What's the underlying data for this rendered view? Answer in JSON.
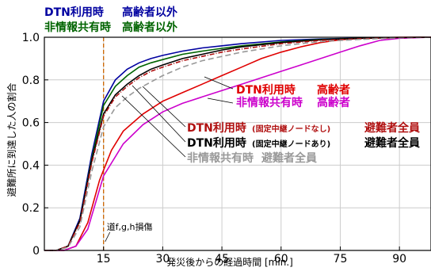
{
  "chart_data": {
    "type": "line",
    "xlabel": "発災後からの経過時間 [min.]",
    "ylabel": "避難所に到達した人の割合",
    "xlim": [
      0,
      98
    ],
    "ylim": [
      0,
      1.0
    ],
    "xticks": [
      15,
      30,
      45,
      60,
      75,
      90
    ],
    "xtick_labels": [
      "15",
      "30",
      "45",
      "60",
      "75",
      "90"
    ],
    "yticks": [
      0,
      0.2,
      0.4,
      0.6,
      0.8,
      1.0
    ],
    "ytick_labels": [
      "0",
      "0.2",
      "0.4",
      "0.6",
      "0.8",
      "1.0"
    ],
    "grid": true,
    "vline": {
      "x": 15,
      "label": "道f,g,h損傷",
      "color": "#cc6600"
    },
    "legend": [
      {
        "text": "DTN利用時",
        "text2": "高齢者以外",
        "color": "#0000a0"
      },
      {
        "text": "非情報共有時",
        "text2": "高齢者以外",
        "color": "#006400"
      }
    ],
    "annotations": [
      {
        "main": "DTN利用時",
        "main2": "高齢者",
        "sub": "",
        "color": "#e00000"
      },
      {
        "main": "非情報共有時",
        "main2": "高齢者",
        "sub": "",
        "color": "#cc00cc"
      },
      {
        "main": "DTN利用時",
        "sub": "(固定中継ノードなし)",
        "main2": "避難者全員",
        "color": "#b01010"
      },
      {
        "main": "DTN利用時",
        "sub": "(固定中継ノードあり)",
        "main2": "避難者全員",
        "color": "#000000"
      },
      {
        "main": "非情報共有時",
        "sub": "",
        "main2": "避難者全員",
        "color": "#999999"
      }
    ],
    "series": [
      {
        "color": "#0000a0",
        "dash": "",
        "x": [
          0,
          3,
          6,
          9,
          12,
          15,
          18,
          21,
          24,
          27,
          30,
          35,
          40,
          45,
          50,
          60,
          70,
          80,
          90,
          98
        ],
        "y": [
          0,
          0,
          0.02,
          0.15,
          0.45,
          0.7,
          0.8,
          0.85,
          0.88,
          0.9,
          0.915,
          0.935,
          0.95,
          0.96,
          0.97,
          0.985,
          0.992,
          0.996,
          0.999,
          1.0
        ]
      },
      {
        "color": "#006400",
        "dash": "",
        "x": [
          0,
          3,
          6,
          9,
          12,
          15,
          18,
          21,
          24,
          27,
          30,
          35,
          40,
          45,
          50,
          60,
          70,
          80,
          90,
          98
        ],
        "y": [
          0,
          0,
          0.02,
          0.14,
          0.43,
          0.68,
          0.77,
          0.82,
          0.86,
          0.88,
          0.895,
          0.92,
          0.935,
          0.948,
          0.96,
          0.978,
          0.99,
          0.995,
          0.999,
          1.0
        ]
      },
      {
        "color": "#e00000",
        "dash": "",
        "x": [
          0,
          5,
          8,
          11,
          14,
          17,
          20,
          25,
          30,
          35,
          40,
          45,
          50,
          55,
          60,
          65,
          70,
          75,
          80,
          85,
          90,
          98
        ],
        "y": [
          0,
          0,
          0.02,
          0.13,
          0.33,
          0.47,
          0.56,
          0.64,
          0.7,
          0.74,
          0.78,
          0.82,
          0.86,
          0.9,
          0.93,
          0.955,
          0.975,
          0.988,
          0.995,
          0.998,
          1.0,
          1.0
        ]
      },
      {
        "color": "#cc00cc",
        "dash": "",
        "x": [
          0,
          5,
          8,
          11,
          15,
          20,
          25,
          30,
          35,
          40,
          45,
          50,
          55,
          60,
          65,
          70,
          75,
          80,
          85,
          90,
          98
        ],
        "y": [
          0,
          0,
          0.02,
          0.1,
          0.35,
          0.5,
          0.59,
          0.65,
          0.69,
          0.72,
          0.75,
          0.78,
          0.81,
          0.84,
          0.87,
          0.9,
          0.93,
          0.96,
          0.985,
          0.995,
          1.0
        ]
      },
      {
        "color": "#000000",
        "dash": "",
        "x": [
          0,
          3,
          6,
          9,
          12,
          15,
          18,
          21,
          24,
          27,
          30,
          35,
          40,
          45,
          50,
          60,
          70,
          80,
          90,
          98
        ],
        "y": [
          0,
          0,
          0.02,
          0.14,
          0.42,
          0.64,
          0.73,
          0.78,
          0.82,
          0.85,
          0.87,
          0.9,
          0.92,
          0.94,
          0.955,
          0.975,
          0.988,
          0.995,
          0.999,
          1.0
        ]
      },
      {
        "color": "#b01010",
        "dash": "6,2,1,2",
        "x": [
          0,
          3,
          6,
          9,
          12,
          15,
          18,
          21,
          24,
          27,
          30,
          35,
          40,
          45,
          50,
          60,
          70,
          80,
          90,
          98
        ],
        "y": [
          0,
          0,
          0.02,
          0.13,
          0.41,
          0.63,
          0.72,
          0.77,
          0.81,
          0.84,
          0.86,
          0.89,
          0.91,
          0.93,
          0.945,
          0.97,
          0.985,
          0.993,
          0.998,
          1.0
        ]
      },
      {
        "color": "#999999",
        "dash": "7,4",
        "x": [
          0,
          3,
          6,
          9,
          12,
          15,
          18,
          21,
          24,
          27,
          30,
          35,
          40,
          45,
          50,
          60,
          70,
          80,
          90,
          98
        ],
        "y": [
          0,
          0,
          0.015,
          0.11,
          0.37,
          0.58,
          0.67,
          0.72,
          0.76,
          0.79,
          0.82,
          0.86,
          0.89,
          0.91,
          0.93,
          0.96,
          0.98,
          0.99,
          0.997,
          1.0
        ]
      }
    ]
  }
}
